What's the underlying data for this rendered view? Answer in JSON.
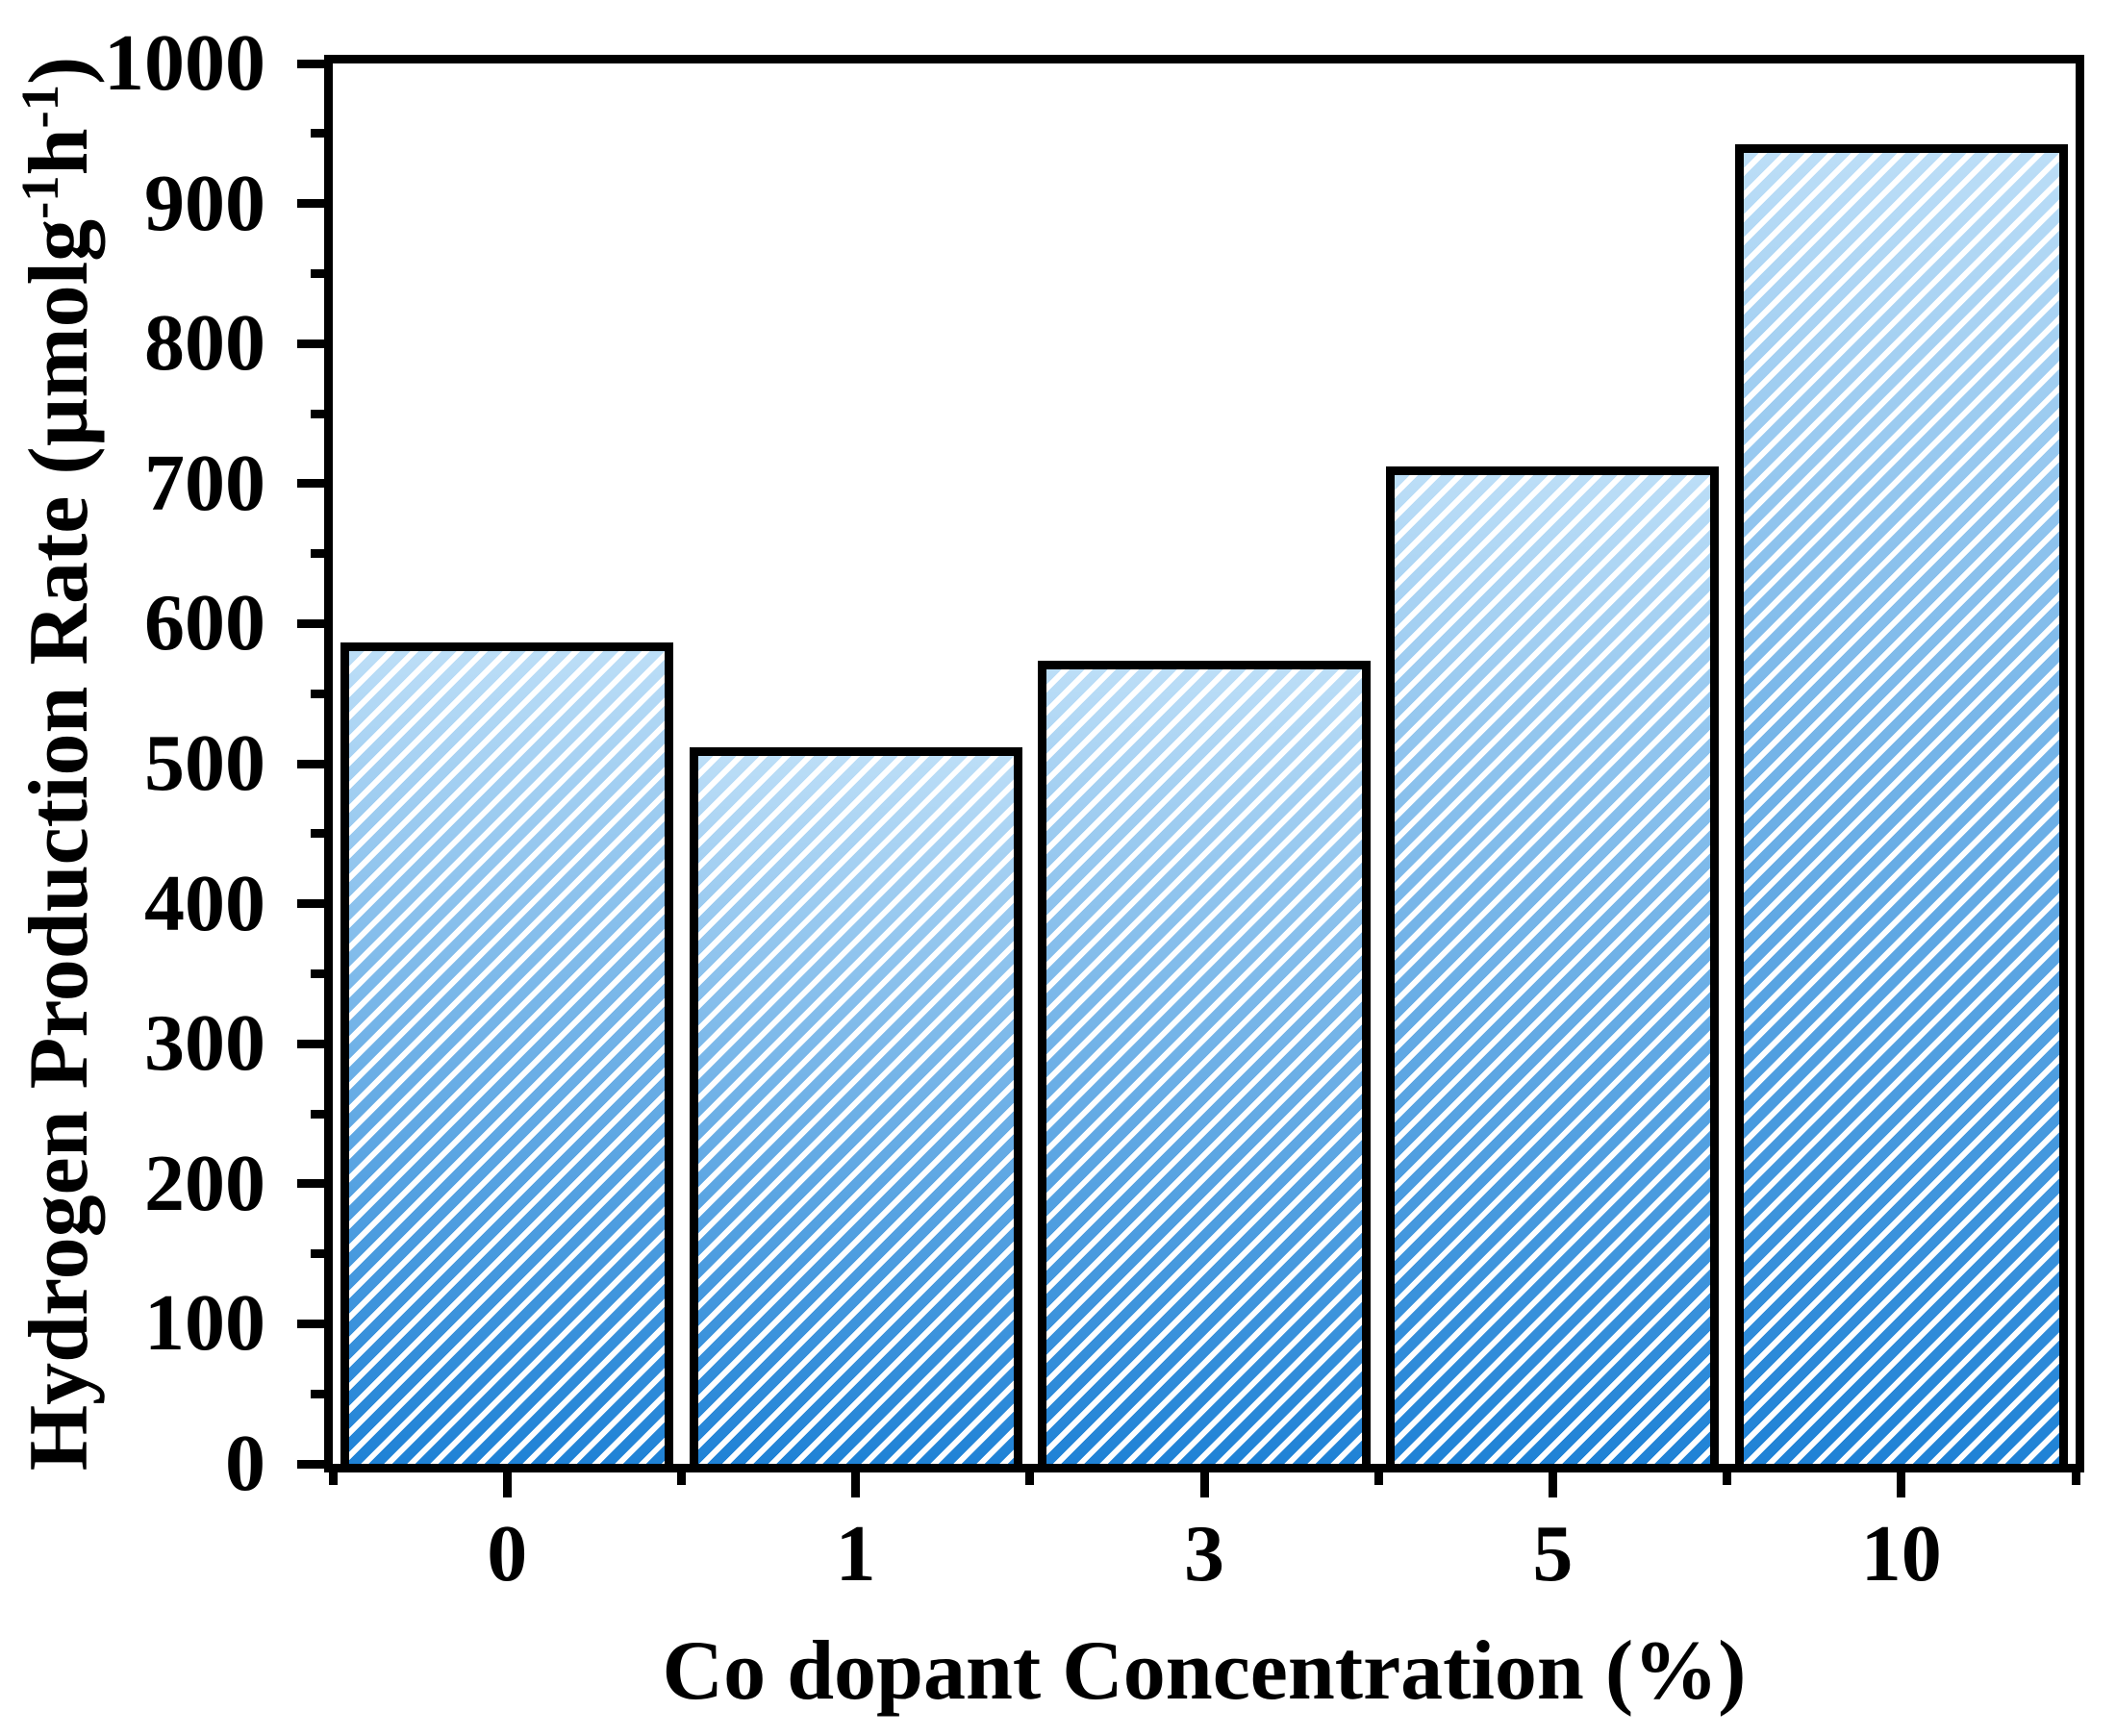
{
  "figure": {
    "background": "#FFFFFF",
    "text_color": "#000000"
  },
  "chart_data": {
    "type": "bar",
    "title": "",
    "categories": [
      "0",
      "1",
      "3",
      "5",
      "10"
    ],
    "values": [
      585,
      510,
      572,
      710,
      940
    ],
    "xlabel": "Co dopant Concentration (%)",
    "ylabel": "Hydrogen Production Rate (µmolg⁻¹h⁻¹)",
    "ylim": [
      0,
      1000
    ],
    "yticks": [
      0,
      100,
      200,
      300,
      400,
      500,
      600,
      700,
      800,
      900,
      1000
    ],
    "y_minor_step": 50,
    "grid": false,
    "legend": false,
    "bar_style": {
      "fill_top": "#BCDEF7",
      "fill_bottom": "#1F82D6",
      "hatch": "forward-diagonal-stripes",
      "hatch_color": "#FFFFFF",
      "border_color": "#000000"
    }
  },
  "yaxis_title": {
    "prefix": "Hydrogen Production Rate (µmolg",
    "sup1": "-1",
    "mid": "h",
    "sup2": "-1",
    "suffix": ")"
  },
  "xaxis_title": "Co dopant Concentration (%)"
}
